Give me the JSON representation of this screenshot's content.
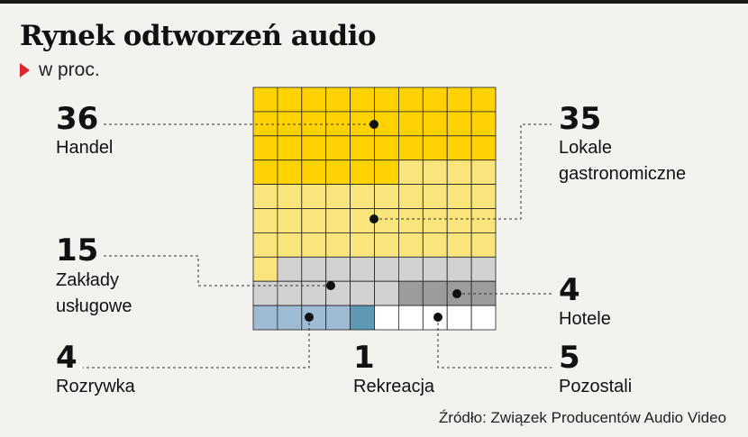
{
  "header": {
    "title": "Rynek odtworzeń audio",
    "subtitle": "w proc."
  },
  "chart_data": {
    "type": "waffle",
    "title": "Rynek odtworzeń audio",
    "unit": "w proc.",
    "grid": {
      "rows": 10,
      "cols": 10
    },
    "segments": [
      {
        "name": "Handel",
        "value": 36,
        "color": "#ffd200"
      },
      {
        "name": "Lokale gastronomiczne",
        "value": 35,
        "color": "#fae57d"
      },
      {
        "name": "Zakłady usługowe",
        "value": 15,
        "color": "#d3d1cf"
      },
      {
        "name": "Hotele",
        "value": 4,
        "color": "#9c9c9b"
      },
      {
        "name": "Rozrywka",
        "value": 4,
        "color": "#9ebbd6"
      },
      {
        "name": "Rekreacja",
        "value": 1,
        "color": "#5d98b4"
      },
      {
        "name": "Pozostali",
        "value": 5,
        "color": "#ffffff"
      }
    ]
  },
  "labels": {
    "handel": {
      "value": "36",
      "name": "Handel"
    },
    "lokale": {
      "value": "35",
      "name_line1": "Lokale",
      "name_line2": "gastronomiczne"
    },
    "uslugi": {
      "value": "15",
      "name_line1": "Zakłady",
      "name_line2": "usługowe"
    },
    "hotele": {
      "value": "4",
      "name": "Hotele"
    },
    "rozrywka": {
      "value": "4",
      "name": "Rozrywka"
    },
    "rekreacja": {
      "value": "1",
      "name": "Rekreacja"
    },
    "pozostali": {
      "value": "5",
      "name": "Pozostali"
    }
  },
  "footer": {
    "source": "Źródło: Związek Producentów Audio Video"
  }
}
